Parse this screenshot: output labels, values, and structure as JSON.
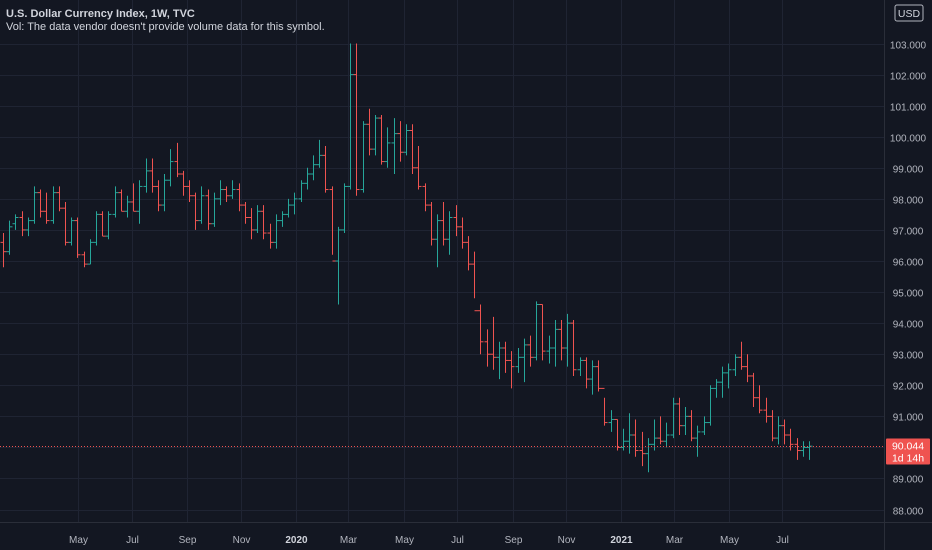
{
  "header": {
    "title": "U.S. Dollar Currency Index, 1W, TVC",
    "volume_note": "Vol: The data vendor doesn't provide volume data for this symbol."
  },
  "currency_badge": "USD",
  "price_marker": {
    "value_label": "90.044",
    "countdown": "1d 14h",
    "value": 90.044
  },
  "colors": {
    "background": "#131722",
    "grid": "#1f2433",
    "up": "#26a69a",
    "down": "#ef5350",
    "text": "#d1d4dc",
    "axis_text": "#b2b5be"
  },
  "chart_data": {
    "type": "ohlc",
    "interval": "1W",
    "ylim": [
      87.6,
      104.4
    ],
    "ytick_labels": [
      "88.000",
      "89.000",
      "90.000",
      "91.000",
      "92.000",
      "93.000",
      "94.000",
      "95.000",
      "96.000",
      "97.000",
      "98.000",
      "99.000",
      "100.000",
      "101.000",
      "102.000",
      "103.000"
    ],
    "xtick_labels": [
      "May",
      "Jul",
      "Sep",
      "Nov",
      "2020",
      "Mar",
      "May",
      "Jul",
      "Sep",
      "Nov",
      "2021",
      "Mar",
      "May",
      "Jul"
    ],
    "xtick_positions": [
      12.1,
      20.8,
      29.7,
      38.4,
      47.2,
      55.7,
      64.6,
      73.3,
      82.2,
      90.8,
      99.7,
      108.2,
      117.1,
      125.7
    ],
    "total_weeks": 135,
    "bars": [
      [
        96.6,
        96.9,
        95.8,
        96.3
      ],
      [
        96.3,
        97.3,
        96.2,
        97.1
      ],
      [
        97.2,
        97.5,
        97.0,
        97.4
      ],
      [
        97.4,
        97.6,
        96.8,
        97.0
      ],
      [
        97.0,
        97.4,
        96.8,
        97.3
      ],
      [
        97.3,
        98.4,
        97.2,
        98.2
      ],
      [
        98.2,
        98.3,
        97.4,
        97.6
      ],
      [
        97.6,
        98.2,
        97.2,
        97.3
      ],
      [
        97.3,
        98.4,
        97.2,
        98.2
      ],
      [
        98.2,
        98.4,
        97.6,
        97.7
      ],
      [
        97.7,
        97.9,
        96.5,
        96.6
      ],
      [
        96.6,
        97.4,
        96.5,
        97.3
      ],
      [
        97.3,
        97.4,
        96.1,
        96.2
      ],
      [
        96.2,
        96.3,
        95.8,
        95.9
      ],
      [
        95.9,
        96.7,
        95.9,
        96.6
      ],
      [
        96.6,
        97.6,
        96.5,
        97.5
      ],
      [
        97.5,
        97.6,
        96.8,
        96.8
      ],
      [
        96.8,
        97.6,
        96.7,
        97.5
      ],
      [
        97.5,
        98.4,
        97.4,
        98.2
      ],
      [
        98.2,
        98.3,
        97.6,
        97.6
      ],
      [
        97.6,
        98.1,
        97.4,
        97.9
      ],
      [
        97.9,
        98.5,
        97.6,
        97.6
      ],
      [
        97.6,
        98.6,
        97.2,
        98.4
      ],
      [
        98.4,
        99.3,
        98.2,
        98.9
      ],
      [
        98.9,
        99.3,
        98.2,
        98.4
      ],
      [
        98.4,
        98.6,
        97.6,
        97.8
      ],
      [
        97.8,
        98.8,
        97.6,
        98.6
      ],
      [
        98.6,
        99.6,
        98.4,
        99.2
      ],
      [
        99.2,
        99.8,
        98.7,
        98.8
      ],
      [
        98.8,
        98.9,
        98.1,
        98.4
      ],
      [
        98.4,
        98.6,
        97.9,
        98.1
      ],
      [
        98.1,
        98.2,
        97.0,
        97.3
      ],
      [
        97.3,
        98.4,
        97.2,
        98.1
      ],
      [
        98.1,
        98.3,
        97.0,
        97.2
      ],
      [
        97.2,
        98.2,
        97.1,
        98.0
      ],
      [
        98.0,
        98.6,
        97.8,
        98.3
      ],
      [
        98.3,
        98.4,
        97.9,
        98.1
      ],
      [
        98.1,
        98.6,
        98.0,
        98.3
      ],
      [
        98.3,
        98.5,
        97.6,
        97.8
      ],
      [
        97.8,
        97.9,
        97.2,
        97.4
      ],
      [
        97.4,
        97.7,
        96.7,
        97.0
      ],
      [
        97.0,
        97.8,
        96.9,
        97.6
      ],
      [
        97.6,
        97.8,
        96.7,
        96.9
      ],
      [
        96.9,
        97.2,
        96.4,
        96.6
      ],
      [
        96.6,
        97.5,
        96.4,
        97.3
      ],
      [
        97.3,
        97.6,
        97.1,
        97.5
      ],
      [
        97.5,
        98.0,
        97.4,
        97.8
      ],
      [
        97.8,
        98.2,
        97.5,
        98.0
      ],
      [
        98.0,
        98.6,
        97.9,
        98.5
      ],
      [
        98.5,
        99.0,
        98.3,
        98.8
      ],
      [
        98.8,
        99.4,
        98.6,
        99.1
      ],
      [
        99.1,
        99.9,
        99.0,
        99.4
      ],
      [
        99.4,
        99.7,
        98.2,
        98.3
      ],
      [
        98.3,
        98.4,
        96.2,
        96.0
      ],
      [
        96.0,
        97.1,
        94.6,
        97.0
      ],
      [
        97.0,
        98.5,
        96.9,
        98.4
      ],
      [
        98.4,
        103.0,
        98.3,
        102.0
      ],
      [
        102.0,
        103.0,
        98.1,
        98.3
      ],
      [
        98.3,
        100.5,
        98.2,
        100.4
      ],
      [
        100.4,
        100.9,
        99.4,
        99.6
      ],
      [
        99.6,
        100.7,
        99.4,
        100.6
      ],
      [
        100.6,
        100.7,
        99.1,
        99.2
      ],
      [
        99.2,
        100.3,
        99.0,
        99.8
      ],
      [
        99.8,
        100.6,
        98.8,
        100.1
      ],
      [
        100.1,
        100.5,
        99.2,
        99.5
      ],
      [
        99.5,
        100.4,
        99.4,
        100.2
      ],
      [
        100.2,
        100.4,
        98.8,
        99.0
      ],
      [
        99.0,
        99.7,
        98.3,
        98.4
      ],
      [
        98.4,
        98.5,
        97.6,
        97.8
      ],
      [
        97.8,
        97.9,
        96.5,
        96.7
      ],
      [
        96.7,
        97.5,
        95.8,
        97.3
      ],
      [
        97.3,
        97.9,
        96.5,
        96.7
      ],
      [
        96.7,
        97.6,
        96.2,
        97.4
      ],
      [
        97.4,
        97.8,
        96.8,
        97.1
      ],
      [
        97.1,
        97.4,
        96.4,
        96.6
      ],
      [
        96.6,
        96.8,
        95.7,
        95.9
      ],
      [
        95.9,
        96.3,
        94.8,
        94.4
      ],
      [
        94.4,
        94.6,
        93.0,
        93.4
      ],
      [
        93.4,
        93.8,
        92.6,
        93.0
      ],
      [
        93.0,
        94.2,
        92.5,
        92.9
      ],
      [
        92.9,
        93.4,
        92.2,
        93.2
      ],
      [
        93.2,
        93.4,
        92.4,
        92.8
      ],
      [
        92.8,
        93.1,
        91.9,
        92.6
      ],
      [
        92.6,
        93.2,
        92.4,
        92.9
      ],
      [
        92.9,
        93.5,
        92.1,
        93.3
      ],
      [
        93.3,
        93.6,
        92.6,
        92.9
      ],
      [
        92.9,
        94.7,
        92.8,
        94.6
      ],
      [
        94.6,
        94.6,
        92.8,
        93.1
      ],
      [
        93.1,
        93.6,
        92.7,
        93.2
      ],
      [
        93.2,
        94.1,
        92.6,
        93.8
      ],
      [
        93.8,
        94.1,
        92.8,
        93.2
      ],
      [
        93.2,
        94.3,
        92.6,
        94.0
      ],
      [
        94.0,
        94.1,
        92.3,
        92.5
      ],
      [
        92.5,
        92.9,
        92.3,
        92.8
      ],
      [
        92.8,
        92.9,
        91.9,
        92.2
      ],
      [
        92.2,
        92.8,
        91.7,
        92.6
      ],
      [
        92.6,
        92.8,
        91.8,
        91.9
      ],
      [
        91.9,
        91.6,
        90.7,
        90.8
      ],
      [
        90.8,
        91.2,
        90.5,
        90.9
      ],
      [
        90.9,
        90.9,
        89.9,
        90.0
      ],
      [
        90.0,
        90.6,
        89.9,
        90.2
      ],
      [
        90.2,
        91.1,
        89.8,
        90.4
      ],
      [
        90.4,
        90.9,
        89.7,
        89.9
      ],
      [
        89.9,
        90.5,
        89.4,
        89.8
      ],
      [
        89.8,
        90.3,
        89.2,
        90.1
      ],
      [
        90.1,
        90.9,
        89.9,
        90.3
      ],
      [
        90.3,
        91.0,
        90.1,
        90.2
      ],
      [
        90.2,
        90.8,
        90.0,
        90.4
      ],
      [
        90.4,
        91.6,
        90.3,
        91.4
      ],
      [
        91.4,
        91.6,
        90.4,
        90.7
      ],
      [
        90.7,
        91.3,
        90.4,
        91.0
      ],
      [
        91.0,
        91.2,
        90.2,
        90.3
      ],
      [
        90.3,
        90.7,
        89.7,
        90.5
      ],
      [
        90.5,
        91.0,
        90.4,
        90.8
      ],
      [
        90.8,
        92.0,
        90.7,
        91.9
      ],
      [
        91.9,
        92.2,
        91.6,
        92.1
      ],
      [
        92.1,
        92.6,
        91.6,
        92.4
      ],
      [
        92.4,
        92.7,
        91.9,
        92.5
      ],
      [
        92.5,
        93.0,
        92.3,
        92.9
      ],
      [
        92.9,
        93.4,
        92.5,
        92.6
      ],
      [
        92.6,
        93.0,
        92.1,
        92.3
      ],
      [
        92.3,
        92.4,
        91.3,
        91.6
      ],
      [
        91.6,
        92.0,
        91.1,
        91.2
      ],
      [
        91.2,
        91.6,
        90.8,
        91.0
      ],
      [
        91.0,
        91.2,
        90.2,
        90.3
      ],
      [
        90.3,
        91.0,
        90.1,
        90.7
      ],
      [
        90.7,
        90.9,
        90.1,
        90.4
      ],
      [
        90.4,
        90.6,
        89.9,
        90.1
      ],
      [
        90.1,
        90.3,
        89.6,
        89.9
      ],
      [
        89.9,
        90.2,
        89.7,
        90.0
      ],
      [
        90.0,
        90.2,
        89.6,
        90.04
      ]
    ]
  }
}
